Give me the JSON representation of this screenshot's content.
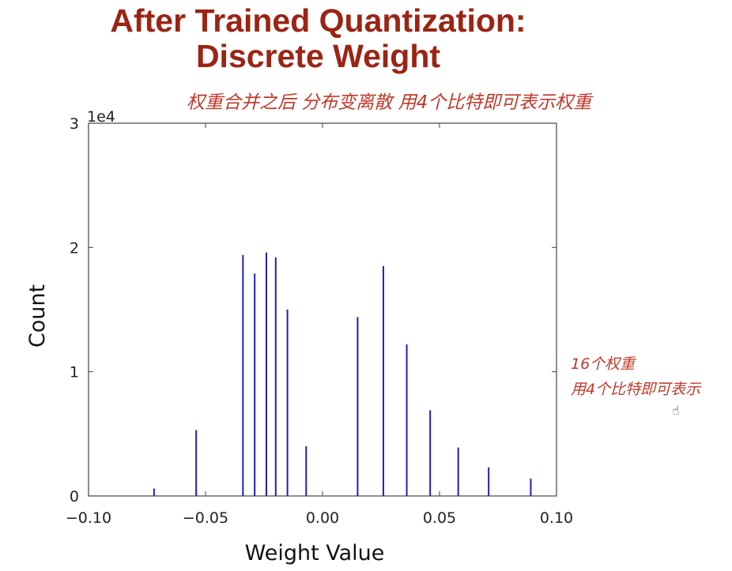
{
  "slide": {
    "title_line1": "After Trained Quantization:",
    "title_line2": "Discrete Weight"
  },
  "annotations": {
    "top": "权重合并之后 分布变离散 用4个比特即可表示权重",
    "side_line1": "16个权重",
    "side_line2": "用4个比特即可表示"
  },
  "icons": {
    "cursor": "hand-cursor-icon"
  },
  "colors": {
    "title": "#9b2414",
    "bars": "#1f1fbf",
    "annotation": "#c0392b"
  },
  "chart_data": {
    "type": "bar",
    "xlabel": "Weight Value",
    "ylabel": "Count",
    "y_exponent_label": "1e4",
    "xlim": [
      -0.1,
      0.1
    ],
    "ylim": [
      0,
      3
    ],
    "x_ticks": [
      "−0.10",
      "−0.05",
      "0.00",
      "0.05",
      "0.10"
    ],
    "y_ticks": [
      "0",
      "1",
      "2",
      "3"
    ],
    "grid": false,
    "bars_x": [
      -0.072,
      -0.054,
      -0.034,
      -0.029,
      -0.024,
      -0.02,
      -0.015,
      -0.007,
      0.015,
      0.026,
      0.036,
      0.046,
      0.058,
      0.071,
      0.089
    ],
    "bars_y": [
      0.06,
      0.53,
      1.94,
      1.79,
      1.96,
      1.92,
      1.5,
      0.4,
      1.44,
      1.85,
      1.22,
      0.69,
      0.39,
      0.23,
      0.14
    ]
  }
}
